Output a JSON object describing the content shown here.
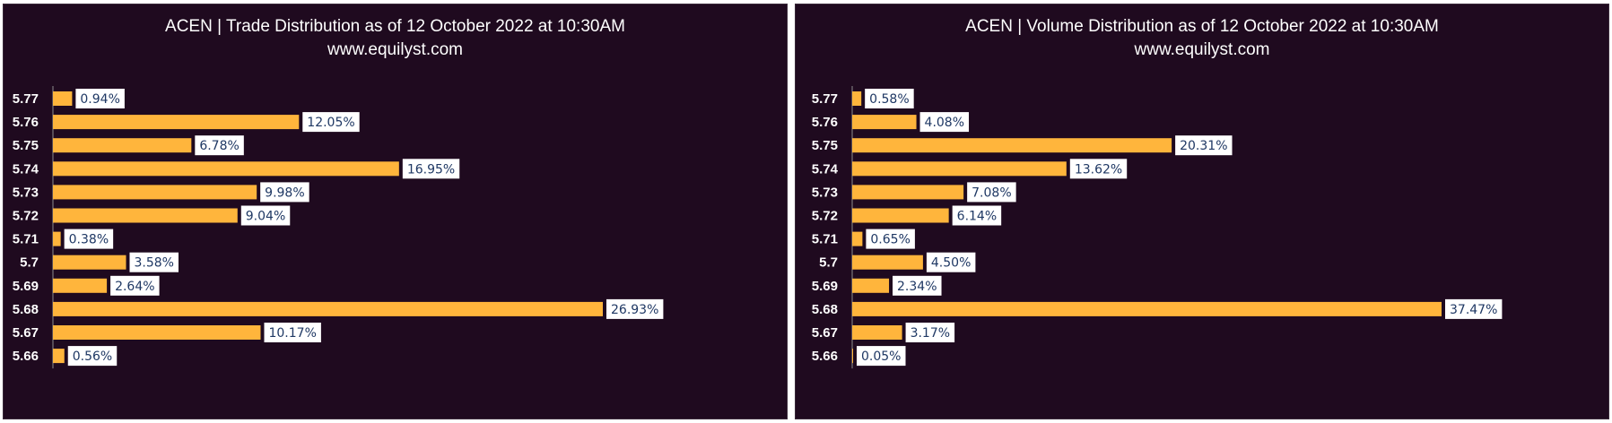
{
  "colors": {
    "background": "#1f0a1f",
    "bar": "#ffb53c",
    "label_bg": "#ffffff",
    "label_text": "#1f3864",
    "text": "#ffffff"
  },
  "chart_data": [
    {
      "type": "bar",
      "orientation": "horizontal",
      "title": "ACEN | Trade Distribution as of 12 October 2022 at 10:30AM",
      "subtitle": "www.equilyst.com",
      "categories": [
        "5.77",
        "5.76",
        "5.75",
        "5.74",
        "5.73",
        "5.72",
        "5.71",
        "5.7",
        "5.69",
        "5.68",
        "5.67",
        "5.66"
      ],
      "values": [
        0.94,
        12.05,
        6.78,
        16.95,
        9.98,
        9.04,
        0.38,
        3.58,
        2.64,
        26.93,
        10.17,
        0.56
      ],
      "labels": [
        "0.94%",
        "12.05%",
        "6.78%",
        "16.95%",
        "9.98%",
        "9.04%",
        "0.38%",
        "3.58%",
        "2.64%",
        "26.93%",
        "10.17%",
        "0.56%"
      ],
      "xlim": [
        0,
        26.93
      ],
      "grid": false,
      "legend": "none"
    },
    {
      "type": "bar",
      "orientation": "horizontal",
      "title": "ACEN | Volume Distribution as of 12 October 2022 at 10:30AM",
      "subtitle": "www.equilyst.com",
      "categories": [
        "5.77",
        "5.76",
        "5.75",
        "5.74",
        "5.73",
        "5.72",
        "5.71",
        "5.7",
        "5.69",
        "5.68",
        "5.67",
        "5.66"
      ],
      "values": [
        0.58,
        4.08,
        20.31,
        13.62,
        7.08,
        6.14,
        0.65,
        4.5,
        2.34,
        37.47,
        3.17,
        0.05
      ],
      "labels": [
        "0.58%",
        "4.08%",
        "20.31%",
        "13.62%",
        "7.08%",
        "6.14%",
        "0.65%",
        "4.50%",
        "2.34%",
        "37.47%",
        "3.17%",
        "0.05%"
      ],
      "xlim": [
        0,
        37.47
      ],
      "grid": false,
      "legend": "none"
    }
  ]
}
